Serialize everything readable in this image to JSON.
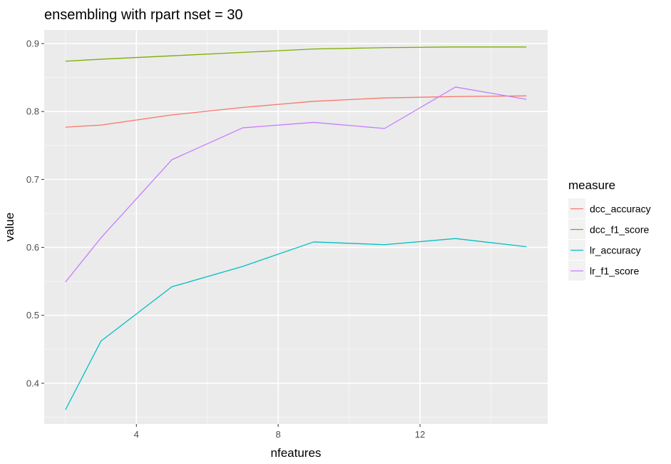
{
  "chart_data": {
    "type": "line",
    "title": "ensembling with rpart nset = 30",
    "xlabel": "nfeatures",
    "ylabel": "value",
    "xlim": [
      1.4,
      15.6
    ],
    "ylim": [
      0.34,
      0.92
    ],
    "x_ticks": [
      4,
      8,
      12
    ],
    "y_ticks": [
      0.4,
      0.5,
      0.6,
      0.7,
      0.8,
      0.9
    ],
    "y_tick_labels": [
      "0.4",
      "0.5",
      "0.6",
      "0.7",
      "0.8",
      "0.9"
    ],
    "grid": true,
    "legend": {
      "title": "measure",
      "placement": "right"
    },
    "series": [
      {
        "name": "dcc_accuracy",
        "color": "#F8766D",
        "x": [
          2,
          3,
          5,
          7,
          9,
          11,
          13,
          15
        ],
        "values": [
          0.777,
          0.78,
          0.795,
          0.806,
          0.815,
          0.82,
          0.822,
          0.823
        ]
      },
      {
        "name": "dcc_f1_score",
        "color": "#7CAE00",
        "x": [
          2,
          3,
          5,
          7,
          9,
          11,
          13,
          15
        ],
        "values": [
          0.874,
          0.877,
          0.882,
          0.887,
          0.892,
          0.894,
          0.895,
          0.895
        ]
      },
      {
        "name": "lr_accuracy",
        "color": "#00BFC4",
        "x": [
          2,
          3,
          5,
          7,
          9,
          11,
          13,
          15
        ],
        "values": [
          0.361,
          0.462,
          0.542,
          0.572,
          0.608,
          0.604,
          0.613,
          0.601
        ]
      },
      {
        "name": "lr_f1_score",
        "color": "#C77CFF",
        "x": [
          2,
          3,
          5,
          7,
          9,
          11,
          13,
          15
        ],
        "values": [
          0.549,
          0.614,
          0.729,
          0.776,
          0.784,
          0.775,
          0.836,
          0.818
        ]
      }
    ]
  }
}
